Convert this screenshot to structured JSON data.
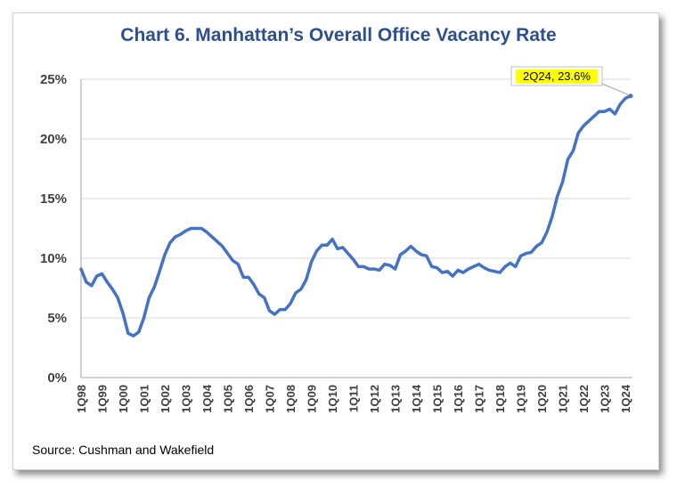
{
  "chart_data": {
    "type": "line",
    "title": "Chart 6.  Manhattan’s Overall Office Vacancy Rate",
    "source": "Source: Cushman and Wakefield",
    "ylim": [
      0,
      25
    ],
    "yticks": [
      "0%",
      "5%",
      "10%",
      "15%",
      "20%",
      "25%"
    ],
    "grid": true,
    "line_color": "#4472c4",
    "callout": {
      "text": "2Q24, 23.6%",
      "background": "#ffff00"
    },
    "xtick_labels": [
      "1Q98",
      "1Q99",
      "1Q00",
      "1Q01",
      "1Q02",
      "1Q03",
      "1Q04",
      "1Q05",
      "1Q06",
      "1Q07",
      "1Q08",
      "1Q09",
      "1Q10",
      "1Q11",
      "1Q12",
      "1Q13",
      "1Q14",
      "1Q15",
      "1Q16",
      "1Q17",
      "1Q18",
      "1Q19",
      "1Q20",
      "1Q21",
      "1Q22",
      "1Q23",
      "1Q24"
    ],
    "series": [
      {
        "x": [
          "1Q98",
          "2Q98",
          "3Q98",
          "4Q98",
          "1Q99",
          "2Q99",
          "3Q99",
          "4Q99",
          "1Q00",
          "2Q00",
          "3Q00",
          "4Q00",
          "1Q01",
          "2Q01",
          "3Q01",
          "4Q01",
          "1Q02",
          "2Q02",
          "3Q02",
          "4Q02",
          "1Q03",
          "2Q03",
          "3Q03",
          "4Q03",
          "1Q04",
          "2Q04",
          "3Q04",
          "4Q04",
          "1Q05",
          "2Q05",
          "3Q05",
          "4Q05",
          "1Q06",
          "2Q06",
          "3Q06",
          "4Q06",
          "1Q07",
          "2Q07",
          "3Q07",
          "4Q07",
          "1Q08",
          "2Q08",
          "3Q08",
          "4Q08",
          "1Q09",
          "2Q09",
          "3Q09",
          "4Q09",
          "1Q10",
          "2Q10",
          "3Q10",
          "4Q10",
          "1Q11",
          "2Q11",
          "3Q11",
          "4Q11",
          "1Q12",
          "2Q12",
          "3Q12",
          "4Q12",
          "1Q13",
          "2Q13",
          "3Q13",
          "4Q13",
          "1Q14",
          "2Q14",
          "3Q14",
          "4Q14",
          "1Q15",
          "2Q15",
          "3Q15",
          "4Q15",
          "1Q16",
          "2Q16",
          "3Q16",
          "4Q16",
          "1Q17",
          "2Q17",
          "3Q17",
          "4Q17",
          "1Q18",
          "2Q18",
          "3Q18",
          "4Q18",
          "1Q19",
          "2Q19",
          "3Q19",
          "4Q19",
          "1Q20",
          "2Q20",
          "3Q20",
          "4Q20",
          "1Q21",
          "2Q21",
          "3Q21",
          "4Q21",
          "1Q22",
          "2Q22",
          "3Q22",
          "4Q22",
          "1Q23",
          "2Q23",
          "3Q23",
          "4Q23",
          "1Q24",
          "2Q24"
        ],
        "values": [
          9.1,
          8.0,
          7.7,
          8.5,
          8.7,
          8.0,
          7.4,
          6.7,
          5.4,
          3.7,
          3.5,
          3.8,
          5.0,
          6.7,
          7.6,
          8.9,
          10.3,
          11.3,
          11.8,
          12.0,
          12.3,
          12.5,
          12.5,
          12.5,
          12.2,
          11.8,
          11.4,
          11.0,
          10.4,
          9.8,
          9.5,
          8.4,
          8.4,
          7.8,
          7.0,
          6.7,
          5.6,
          5.3,
          5.7,
          5.7,
          6.2,
          7.1,
          7.4,
          8.2,
          9.7,
          10.6,
          11.1,
          11.1,
          11.6,
          10.8,
          10.9,
          10.4,
          9.9,
          9.3,
          9.3,
          9.1,
          9.1,
          9.0,
          9.5,
          9.4,
          9.1,
          10.3,
          10.6,
          11.0,
          10.6,
          10.3,
          10.2,
          9.3,
          9.2,
          8.8,
          8.9,
          8.5,
          9.0,
          8.8,
          9.1,
          9.3,
          9.5,
          9.2,
          9.0,
          8.9,
          8.8,
          9.3,
          9.6,
          9.3,
          10.2,
          10.4,
          10.5,
          11.0,
          11.3,
          12.2,
          13.5,
          15.2,
          16.4,
          18.3,
          19.0,
          20.5,
          21.1,
          21.5,
          21.9,
          22.3,
          22.3,
          22.5,
          22.1,
          22.9,
          23.4,
          23.6
        ]
      }
    ]
  }
}
